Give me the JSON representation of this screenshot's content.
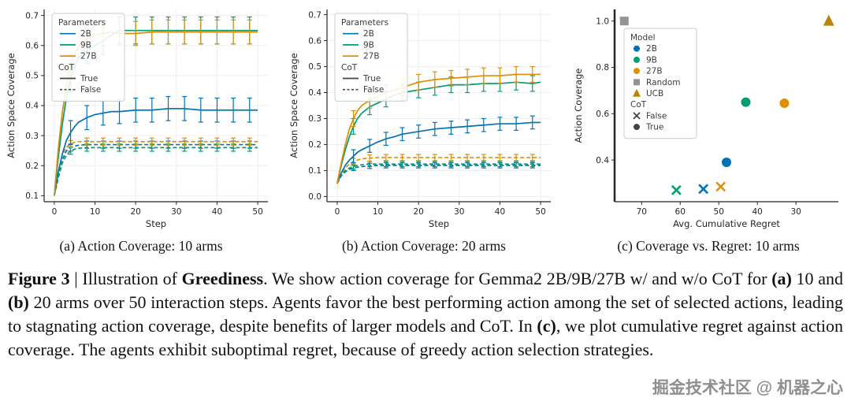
{
  "figure": {
    "subcaptions": {
      "a": "(a) Action Coverage: 10 arms",
      "b": "(b) Action Coverage: 20 arms",
      "c": "(c) Coverage vs. Regret: 10 arms"
    },
    "caption_segments": [
      {
        "text": "Figure 3",
        "bold": true
      },
      {
        "text": " | Illustration of ",
        "bold": false
      },
      {
        "text": "Greediness",
        "bold": true
      },
      {
        "text": ". We show action coverage for Gemma2 2B/9B/27B w/ and w/o CoT for ",
        "bold": false
      },
      {
        "text": "(a)",
        "bold": true
      },
      {
        "text": " 10 and ",
        "bold": false
      },
      {
        "text": "(b)",
        "bold": true
      },
      {
        "text": " 20 arms over 50 interaction steps. Agents favor the best performing action among the set of selected actions, leading to stagnating action coverage, despite benefits of larger models and CoT. In ",
        "bold": false
      },
      {
        "text": "(c)",
        "bold": true
      },
      {
        "text": ", we plot cumulative regret against action coverage. The agents exhibit suboptimal regret, because of greedy action selection strategies.",
        "bold": false
      }
    ]
  },
  "watermark": "掘金技术社区 @ 机器之心",
  "colors": {
    "blue": "#0173B2",
    "green": "#029E73",
    "orange": "#DE8F05",
    "gray": "#949494",
    "gold": "#B8860B",
    "dark": "#444444",
    "axis": "#262626",
    "grid": "#EFEFEF"
  },
  "chart_data": [
    {
      "id": "a",
      "type": "line",
      "title": "Action Coverage: 10 arms",
      "xlabel": "Step",
      "ylabel": "Action Space Coverage",
      "xlim": [
        -2.5,
        52.5
      ],
      "ylim": [
        0.08,
        0.72
      ],
      "xticks": [
        0,
        10,
        20,
        30,
        40,
        50
      ],
      "yticks": [
        0.1,
        0.2,
        0.3,
        0.4,
        0.5,
        0.6,
        0.7
      ],
      "xtick_dec": 0,
      "ytick_dec": 1,
      "grid": true,
      "x": [
        0,
        1,
        2,
        3,
        4,
        5,
        6,
        8,
        10,
        12,
        14,
        16,
        20,
        24,
        28,
        32,
        36,
        40,
        44,
        48,
        50
      ],
      "series": [
        {
          "name": "2B CoT=False",
          "color": "blue",
          "dash": true,
          "err": 0.012,
          "err_x": [
            4,
            8,
            12,
            16,
            20,
            24,
            28,
            32,
            36,
            40,
            44,
            48
          ],
          "y": [
            0.1,
            0.17,
            0.22,
            0.25,
            0.26,
            0.265,
            0.268,
            0.27,
            0.27,
            0.27,
            0.27,
            0.27,
            0.27,
            0.27,
            0.27,
            0.27,
            0.27,
            0.27,
            0.27,
            0.27,
            0.27
          ]
        },
        {
          "name": "9B CoT=False",
          "color": "green",
          "dash": true,
          "err": 0.012,
          "err_x": [
            4,
            8,
            12,
            16,
            20,
            24,
            28,
            32,
            36,
            40,
            44,
            48
          ],
          "y": [
            0.1,
            0.16,
            0.21,
            0.235,
            0.25,
            0.255,
            0.258,
            0.26,
            0.26,
            0.26,
            0.26,
            0.26,
            0.26,
            0.26,
            0.26,
            0.26,
            0.26,
            0.26,
            0.26,
            0.26,
            0.26
          ]
        },
        {
          "name": "27B CoT=False",
          "color": "orange",
          "dash": true,
          "err": 0.012,
          "err_x": [
            4,
            8,
            12,
            16,
            20,
            24,
            28,
            32,
            36,
            40,
            44,
            48
          ],
          "y": [
            0.1,
            0.18,
            0.235,
            0.262,
            0.272,
            0.278,
            0.28,
            0.28,
            0.28,
            0.28,
            0.28,
            0.28,
            0.28,
            0.28,
            0.28,
            0.28,
            0.28,
            0.28,
            0.28,
            0.28,
            0.28
          ]
        },
        {
          "name": "2B CoT=True",
          "color": "blue",
          "dash": false,
          "err": 0.04,
          "err_x": [
            4,
            8,
            12,
            16,
            20,
            24,
            28,
            32,
            36,
            40,
            44,
            48
          ],
          "y": [
            0.1,
            0.18,
            0.24,
            0.285,
            0.31,
            0.33,
            0.345,
            0.36,
            0.37,
            0.375,
            0.38,
            0.38,
            0.385,
            0.385,
            0.39,
            0.39,
            0.385,
            0.385,
            0.385,
            0.385,
            0.385
          ]
        },
        {
          "name": "9B CoT=True",
          "color": "green",
          "dash": false,
          "err": 0.045,
          "err_x": [
            4,
            8,
            12,
            16,
            20,
            24,
            28,
            32,
            36,
            40,
            44,
            48
          ],
          "y": [
            0.1,
            0.23,
            0.34,
            0.43,
            0.49,
            0.53,
            0.56,
            0.585,
            0.6,
            0.615,
            0.635,
            0.65,
            0.65,
            0.65,
            0.65,
            0.65,
            0.65,
            0.65,
            0.65,
            0.65,
            0.65
          ]
        },
        {
          "name": "27B CoT=True",
          "color": "orange",
          "dash": false,
          "err": 0.04,
          "err_x": [
            4,
            8,
            12,
            16,
            20,
            24,
            28,
            32,
            36,
            40,
            44,
            48
          ],
          "y": [
            0.1,
            0.26,
            0.38,
            0.47,
            0.53,
            0.57,
            0.6,
            0.62,
            0.635,
            0.64,
            0.645,
            0.64,
            0.64,
            0.645,
            0.645,
            0.645,
            0.645,
            0.645,
            0.645,
            0.645,
            0.645
          ]
        }
      ],
      "legend": {
        "groups": [
          {
            "title": "Parameters",
            "entries": [
              {
                "label": "2B",
                "color": "blue",
                "style": "solid"
              },
              {
                "label": "9B",
                "color": "green",
                "style": "solid"
              },
              {
                "label": "27B",
                "color": "orange",
                "style": "solid"
              }
            ]
          },
          {
            "title": "CoT",
            "entries": [
              {
                "label": "True",
                "color": "dark",
                "style": "solid"
              },
              {
                "label": "False",
                "color": "dark",
                "style": "dashed"
              }
            ]
          }
        ]
      }
    },
    {
      "id": "b",
      "type": "line",
      "title": "Action Coverage: 20 arms",
      "xlabel": "Step",
      "ylabel": "Action Space Coverage",
      "xlim": [
        -2.5,
        52.5
      ],
      "ylim": [
        -0.02,
        0.72
      ],
      "xticks": [
        0,
        10,
        20,
        30,
        40,
        50
      ],
      "yticks": [
        0.0,
        0.1,
        0.2,
        0.3,
        0.4,
        0.5,
        0.6,
        0.7
      ],
      "xtick_dec": 0,
      "ytick_dec": 1,
      "grid": true,
      "x": [
        0,
        1,
        2,
        3,
        4,
        5,
        6,
        8,
        10,
        12,
        14,
        16,
        20,
        24,
        28,
        32,
        36,
        40,
        44,
        48,
        50
      ],
      "series": [
        {
          "name": "2B CoT=False",
          "color": "blue",
          "dash": true,
          "err": 0.01,
          "err_x": [
            4,
            8,
            12,
            16,
            20,
            24,
            28,
            32,
            36,
            40,
            44,
            48
          ],
          "y": [
            0.05,
            0.08,
            0.095,
            0.105,
            0.11,
            0.113,
            0.115,
            0.118,
            0.12,
            0.12,
            0.12,
            0.12,
            0.12,
            0.12,
            0.12,
            0.12,
            0.12,
            0.12,
            0.12,
            0.12,
            0.12
          ]
        },
        {
          "name": "9B CoT=False",
          "color": "green",
          "dash": true,
          "err": 0.01,
          "err_x": [
            4,
            8,
            12,
            16,
            20,
            24,
            28,
            32,
            36,
            40,
            44,
            48
          ],
          "y": [
            0.05,
            0.085,
            0.1,
            0.11,
            0.115,
            0.12,
            0.122,
            0.125,
            0.125,
            0.125,
            0.125,
            0.125,
            0.125,
            0.125,
            0.125,
            0.125,
            0.125,
            0.125,
            0.125,
            0.125,
            0.125
          ]
        },
        {
          "name": "27B CoT=False",
          "color": "orange",
          "dash": true,
          "err": 0.012,
          "err_x": [
            4,
            8,
            12,
            16,
            20,
            24,
            28,
            32,
            36,
            40,
            44,
            48
          ],
          "y": [
            0.05,
            0.09,
            0.11,
            0.125,
            0.135,
            0.14,
            0.145,
            0.148,
            0.15,
            0.15,
            0.15,
            0.15,
            0.15,
            0.15,
            0.15,
            0.15,
            0.15,
            0.15,
            0.15,
            0.15,
            0.15
          ]
        },
        {
          "name": "2B CoT=True",
          "color": "blue",
          "dash": false,
          "err": 0.025,
          "err_x": [
            4,
            8,
            12,
            16,
            20,
            24,
            28,
            32,
            36,
            40,
            44,
            48
          ],
          "y": [
            0.05,
            0.09,
            0.12,
            0.14,
            0.155,
            0.17,
            0.18,
            0.195,
            0.21,
            0.222,
            0.23,
            0.24,
            0.25,
            0.26,
            0.265,
            0.27,
            0.275,
            0.28,
            0.28,
            0.285,
            0.285
          ]
        },
        {
          "name": "9B CoT=True",
          "color": "green",
          "dash": false,
          "err": 0.03,
          "err_x": [
            4,
            8,
            12,
            16,
            20,
            24,
            28,
            32,
            36,
            40,
            44,
            48
          ],
          "y": [
            0.05,
            0.12,
            0.18,
            0.23,
            0.27,
            0.3,
            0.32,
            0.345,
            0.36,
            0.375,
            0.39,
            0.4,
            0.41,
            0.42,
            0.43,
            0.43,
            0.435,
            0.435,
            0.44,
            0.435,
            0.44
          ]
        },
        {
          "name": "27B CoT=True",
          "color": "orange",
          "dash": false,
          "err": 0.03,
          "err_x": [
            4,
            8,
            12,
            16,
            20,
            24,
            28,
            32,
            36,
            40,
            44,
            48
          ],
          "y": [
            0.05,
            0.13,
            0.2,
            0.26,
            0.3,
            0.33,
            0.35,
            0.37,
            0.385,
            0.4,
            0.41,
            0.42,
            0.44,
            0.45,
            0.455,
            0.46,
            0.465,
            0.465,
            0.47,
            0.47,
            0.47
          ]
        }
      ],
      "legend": {
        "groups": [
          {
            "title": "Parameters",
            "entries": [
              {
                "label": "2B",
                "color": "blue",
                "style": "solid"
              },
              {
                "label": "9B",
                "color": "green",
                "style": "solid"
              },
              {
                "label": "27B",
                "color": "orange",
                "style": "solid"
              }
            ]
          },
          {
            "title": "CoT",
            "entries": [
              {
                "label": "True",
                "color": "dark",
                "style": "solid"
              },
              {
                "label": "False",
                "color": "dark",
                "style": "dashed"
              }
            ]
          }
        ]
      }
    },
    {
      "id": "c",
      "type": "scatter",
      "title": "Coverage vs. Regret: 10 arms",
      "xlabel": "Avg. Cumulative Regret",
      "ylabel": "Action Coverage",
      "xlim": [
        77,
        19
      ],
      "ylim": [
        0.22,
        1.05
      ],
      "xticks": [
        70,
        60,
        50,
        40,
        30
      ],
      "yticks": [
        0.4,
        0.6,
        0.8,
        1.0
      ],
      "xtick_dec": 0,
      "ytick_dec": 1,
      "grid": false,
      "points": [
        {
          "model": "Random",
          "x": 74.5,
          "y": 1.0,
          "marker": "square",
          "color": "gray"
        },
        {
          "model": "UCB",
          "x": 21.5,
          "y": 1.0,
          "marker": "triangle",
          "color": "gold"
        },
        {
          "model": "9B",
          "cot": "False",
          "x": 61,
          "y": 0.27,
          "marker": "x",
          "color": "green"
        },
        {
          "model": "2B",
          "cot": "False",
          "x": 54,
          "y": 0.275,
          "marker": "x",
          "color": "blue"
        },
        {
          "model": "27B",
          "cot": "False",
          "x": 49.5,
          "y": 0.285,
          "marker": "x",
          "color": "orange"
        },
        {
          "model": "2B",
          "cot": "True",
          "x": 48,
          "y": 0.39,
          "marker": "circle",
          "color": "blue"
        },
        {
          "model": "9B",
          "cot": "True",
          "x": 43,
          "y": 0.65,
          "marker": "circle",
          "color": "green"
        },
        {
          "model": "27B",
          "cot": "True",
          "x": 33,
          "y": 0.645,
          "marker": "circle",
          "color": "orange"
        }
      ],
      "legend": {
        "groups": [
          {
            "title": "Model",
            "entries": [
              {
                "label": "2B",
                "marker": "circle",
                "color": "blue"
              },
              {
                "label": "9B",
                "marker": "circle",
                "color": "green"
              },
              {
                "label": "27B",
                "marker": "circle",
                "color": "orange"
              },
              {
                "label": "Random",
                "marker": "square",
                "color": "gray"
              },
              {
                "label": "UCB",
                "marker": "triangle",
                "color": "gold"
              }
            ]
          },
          {
            "title": "CoT",
            "entries": [
              {
                "label": "False",
                "marker": "x",
                "color": "dark"
              },
              {
                "label": "True",
                "marker": "circle",
                "color": "dark"
              }
            ]
          }
        ]
      }
    }
  ]
}
